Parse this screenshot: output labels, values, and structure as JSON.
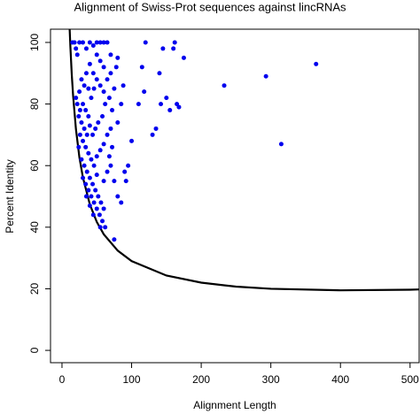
{
  "chart_data": {
    "type": "scatter",
    "title": "Alignment of Swiss-Prot sequences against lincRNAs",
    "xlabel": "Alignment Length",
    "ylabel": "Percent Identity",
    "color": "#0000ee",
    "x": [
      15,
      18,
      20,
      22,
      25,
      30,
      35,
      40,
      45,
      50,
      55,
      60,
      65,
      50,
      55,
      60,
      40,
      35,
      45,
      28,
      32,
      38,
      25,
      20,
      22,
      26,
      30,
      34,
      38,
      42,
      46,
      50,
      55,
      60,
      65,
      70,
      68,
      62,
      58,
      52,
      48,
      44,
      40,
      36,
      32,
      28,
      24,
      26,
      30,
      34,
      38,
      42,
      46,
      50,
      55,
      60,
      65,
      70,
      72,
      75,
      78,
      80,
      70,
      24,
      28,
      32,
      36,
      40,
      44,
      48,
      52,
      56,
      60,
      30,
      34,
      38,
      42,
      46,
      50,
      54,
      58,
      62,
      35,
      40,
      45,
      55,
      75,
      65,
      70,
      75,
      80,
      85,
      90,
      92,
      95,
      100,
      110,
      115,
      118,
      120,
      130,
      135,
      140,
      142,
      145,
      150,
      155,
      160,
      162,
      165,
      168,
      175,
      233,
      293,
      315,
      365,
      50,
      60,
      68,
      72,
      80,
      85,
      88
    ],
    "values": [
      100,
      100,
      98,
      96,
      100,
      100,
      98,
      100,
      99,
      100,
      100,
      100,
      100,
      96,
      94,
      92,
      93,
      90,
      90,
      88,
      86,
      85,
      84,
      82,
      80,
      78,
      80,
      78,
      76,
      82,
      85,
      88,
      86,
      84,
      88,
      90,
      82,
      80,
      76,
      74,
      72,
      70,
      73,
      70,
      72,
      74,
      76,
      70,
      68,
      66,
      64,
      62,
      60,
      63,
      65,
      67,
      70,
      72,
      78,
      85,
      92,
      95,
      96,
      66,
      62,
      60,
      58,
      56,
      54,
      52,
      50,
      48,
      46,
      56,
      54,
      52,
      50,
      48,
      46,
      44,
      42,
      40,
      50,
      47,
      44,
      40,
      36,
      58,
      60,
      55,
      50,
      48,
      58,
      55,
      60,
      68,
      80,
      92,
      84,
      100,
      70,
      72,
      90,
      80,
      98,
      82,
      78,
      98,
      100,
      80,
      79,
      95,
      86,
      89,
      67,
      93,
      57,
      55,
      63,
      66,
      74,
      80,
      86
    ],
    "curve": {
      "color": "#000000",
      "x": [
        11,
        12,
        14,
        16,
        20,
        25,
        30,
        40,
        50,
        60,
        80,
        100,
        150,
        200,
        250,
        300,
        400,
        500,
        515
      ],
      "values": [
        104.4,
        98.9,
        89.7,
        82.6,
        71.9,
        62.7,
        56.2,
        47.4,
        41.7,
        37.7,
        32.4,
        29.0,
        24.3,
        22.0,
        20.7,
        20.0,
        19.5,
        19.7,
        19.8
      ]
    },
    "xlim": [
      -16.5,
      513
    ],
    "ylim": [
      -4,
      104.3
    ],
    "xticks": [
      0,
      100,
      200,
      300,
      400,
      500
    ],
    "yticks": [
      0,
      20,
      40,
      60,
      80,
      100
    ]
  }
}
